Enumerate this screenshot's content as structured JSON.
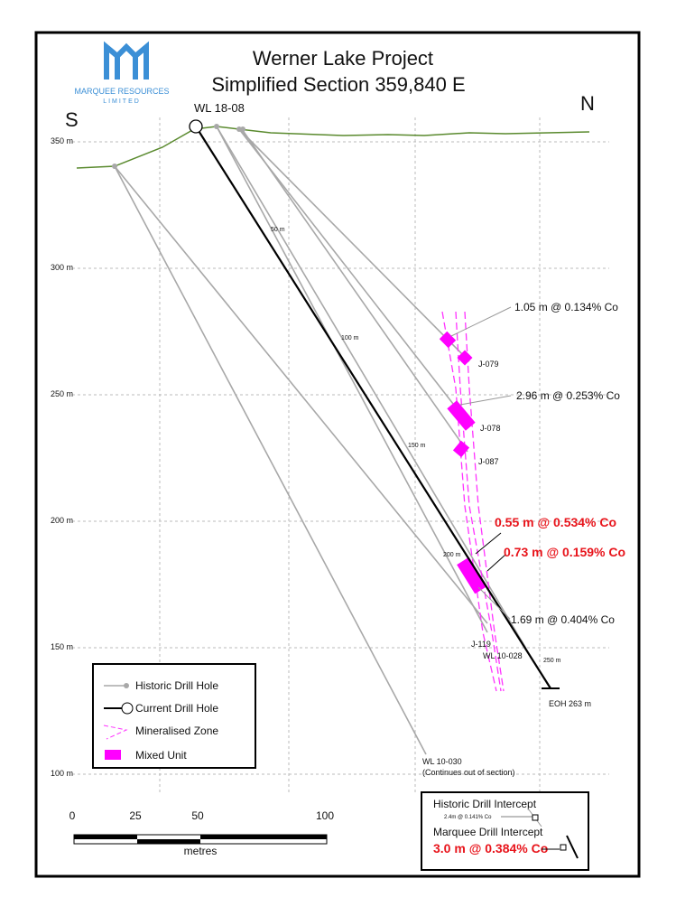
{
  "header": {
    "title": "Werner Lake Project",
    "subtitle": "Simplified Section 359,840 E"
  },
  "logo": {
    "name": "MARQUEE RESOURCES",
    "sub": "LIMITED"
  },
  "directions": {
    "south": "S",
    "north": "N"
  },
  "elevations": [
    "350 m",
    "300 m",
    "250 m",
    "200 m",
    "150 m",
    "100 m"
  ],
  "scale": {
    "ticks": [
      "0",
      "25",
      "50",
      "100"
    ],
    "unit": "metres"
  },
  "holes": {
    "current": "WL 18-08",
    "j079": "J-079",
    "j078": "J-078",
    "j087": "J-087",
    "j119": "J-119",
    "wl10028": "WL 10-028",
    "wl10030": "WL 10-030",
    "continues": "(Continues out  of section)",
    "eoh": "EOH 263 m"
  },
  "depths": [
    "50 m",
    "100 m",
    "150 m",
    "200 m",
    "250 m"
  ],
  "intercepts": {
    "historic": [
      "1.05 m @ 0.134% Co",
      "2.96 m @ 0.253% Co",
      "1.69 m @ 0.404% Co"
    ],
    "marquee": [
      "0.55 m @ 0.534% Co",
      "0.73 m @ 0.159% Co"
    ]
  },
  "legend": [
    "Historic Drill Hole",
    "Current Drill Hole",
    "Mineralised Zone",
    "Mixed Unit"
  ],
  "inset": {
    "historic_title": "Historic Drill Intercept",
    "historic_example": "2.4m @ 0.141% Co",
    "marquee_title": "Marquee Drill Intercept",
    "marquee_example": "3.0 m @ 0.384% Co"
  }
}
